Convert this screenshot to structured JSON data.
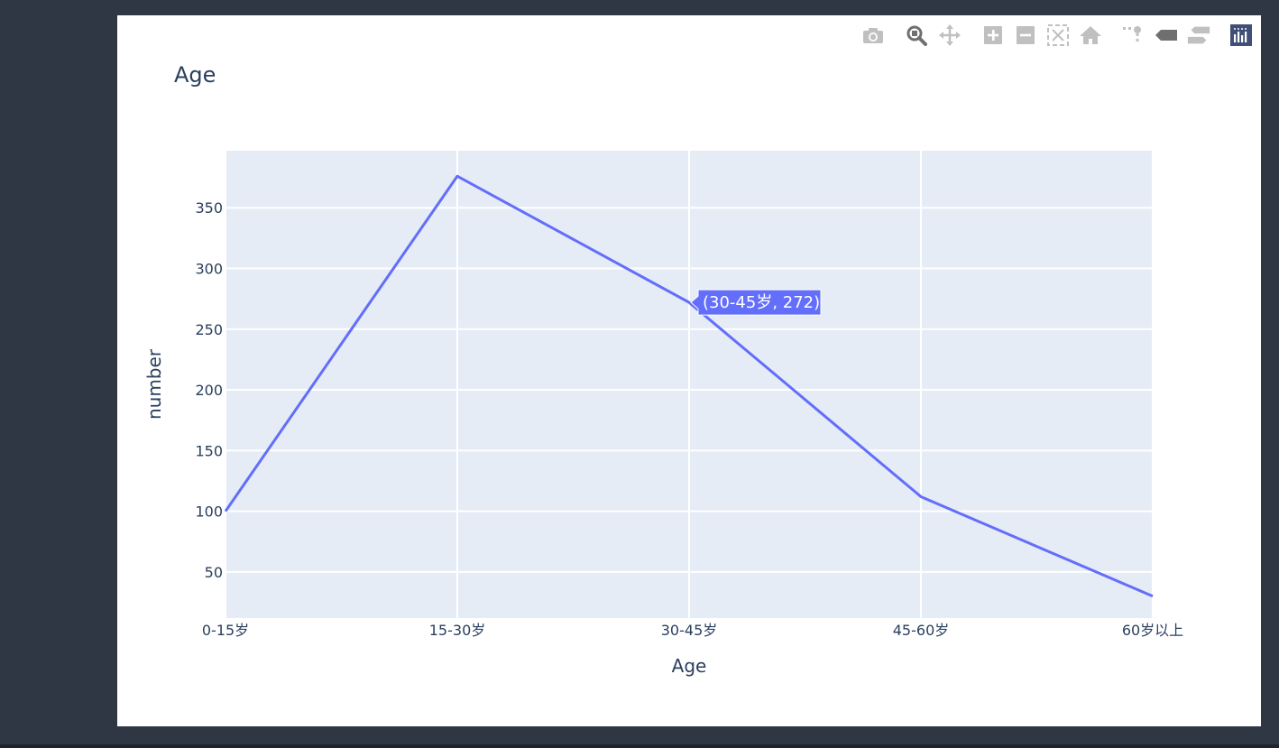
{
  "modebar": {
    "buttons": [
      {
        "name": "camera-icon",
        "color": "#c0c0c0"
      },
      {
        "name": "zoom-icon",
        "color": "#6f6f6f"
      },
      {
        "name": "pan-icon",
        "color": "#c0c0c0"
      },
      {
        "name": "zoom-in-icon",
        "color": "#c0c0c0"
      },
      {
        "name": "zoom-out-icon",
        "color": "#c0c0c0"
      },
      {
        "name": "autoscale-icon",
        "color": "#c0c0c0"
      },
      {
        "name": "reset-axes-icon",
        "color": "#c0c0c0"
      },
      {
        "name": "spike-lines-icon",
        "color": "#c0c0c0"
      },
      {
        "name": "hover-closest-icon",
        "color": "#6f6f6f"
      },
      {
        "name": "hover-compare-icon",
        "color": "#c0c0c0"
      },
      {
        "name": "plotly-logo-icon",
        "color": "#3f4f75"
      }
    ]
  },
  "chart_data": {
    "type": "line",
    "title": "Age",
    "xlabel": "Age",
    "ylabel": "number",
    "categories": [
      "0-15岁",
      "15-30岁",
      "30-45岁",
      "45-60岁",
      "60岁以上"
    ],
    "values": [
      100,
      376,
      272,
      112,
      30
    ],
    "ylim": [
      12,
      397
    ],
    "yticks": [
      50,
      100,
      150,
      200,
      250,
      300,
      350
    ],
    "grid": true,
    "line_color": "#636efa",
    "plot_bg": "#e5ecf6",
    "hover": {
      "category": "30-45岁",
      "value": 272,
      "label": "(30-45岁, 272)"
    }
  }
}
